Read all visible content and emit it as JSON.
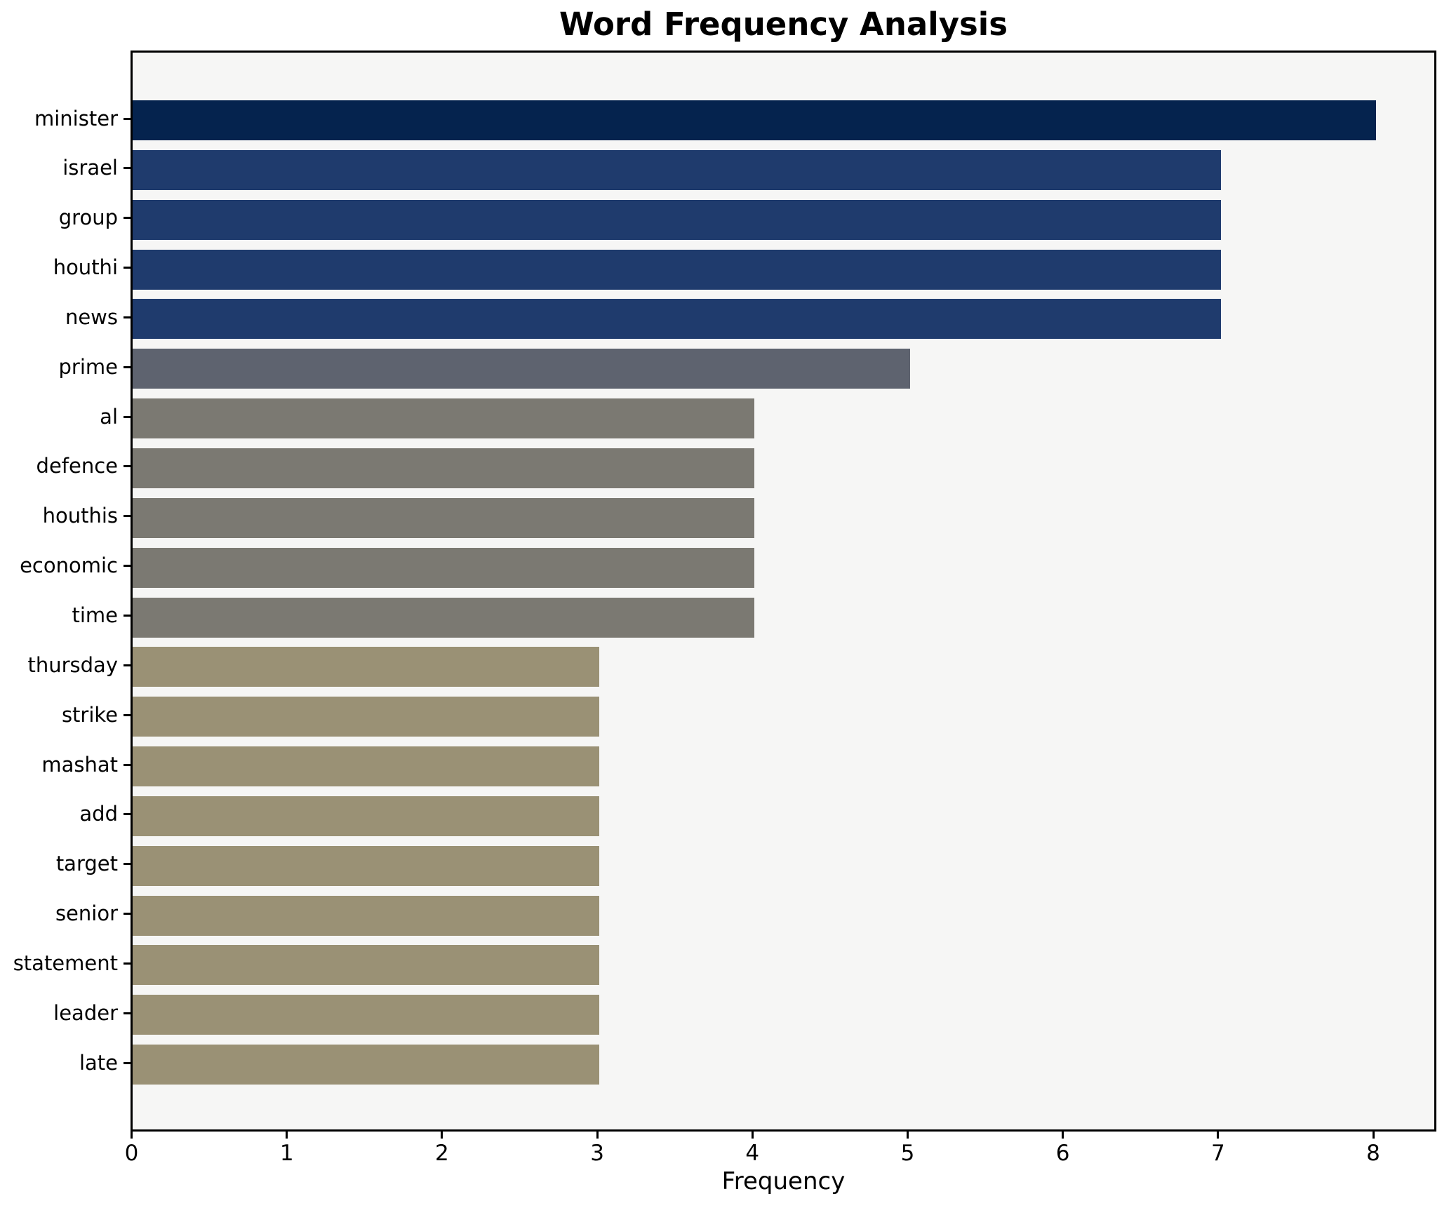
{
  "title": "Word Frequency Analysis",
  "xlabel": "Frequency",
  "chart_data": {
    "type": "bar",
    "orientation": "horizontal",
    "title": "Word Frequency Analysis",
    "xlabel": "Frequency",
    "ylabel": "",
    "categories": [
      "minister",
      "israel",
      "group",
      "houthi",
      "news",
      "prime",
      "al",
      "defence",
      "houthis",
      "economic",
      "time",
      "thursday",
      "strike",
      "mashat",
      "add",
      "target",
      "senior",
      "statement",
      "leader",
      "late"
    ],
    "values": [
      8,
      7,
      7,
      7,
      7,
      5,
      4,
      4,
      4,
      4,
      4,
      3,
      3,
      3,
      3,
      3,
      3,
      3,
      3,
      3
    ],
    "bar_colors": [
      "#05234e",
      "#1f3b6d",
      "#1f3b6d",
      "#1f3b6d",
      "#1f3b6d",
      "#5e636f",
      "#7b7972",
      "#7b7972",
      "#7b7972",
      "#7b7972",
      "#7b7972",
      "#9a9175",
      "#9a9175",
      "#9a9175",
      "#9a9175",
      "#9a9175",
      "#9a9175",
      "#9a9175",
      "#9a9175",
      "#9a9175"
    ],
    "xticks": [
      0,
      1,
      2,
      3,
      4,
      5,
      6,
      7,
      8
    ],
    "xlim": [
      0,
      8.4
    ],
    "grid": false,
    "legend": false,
    "plot_background": "#f6f6f5",
    "figure_background": "#ffffff",
    "spine_color": "#000000"
  }
}
